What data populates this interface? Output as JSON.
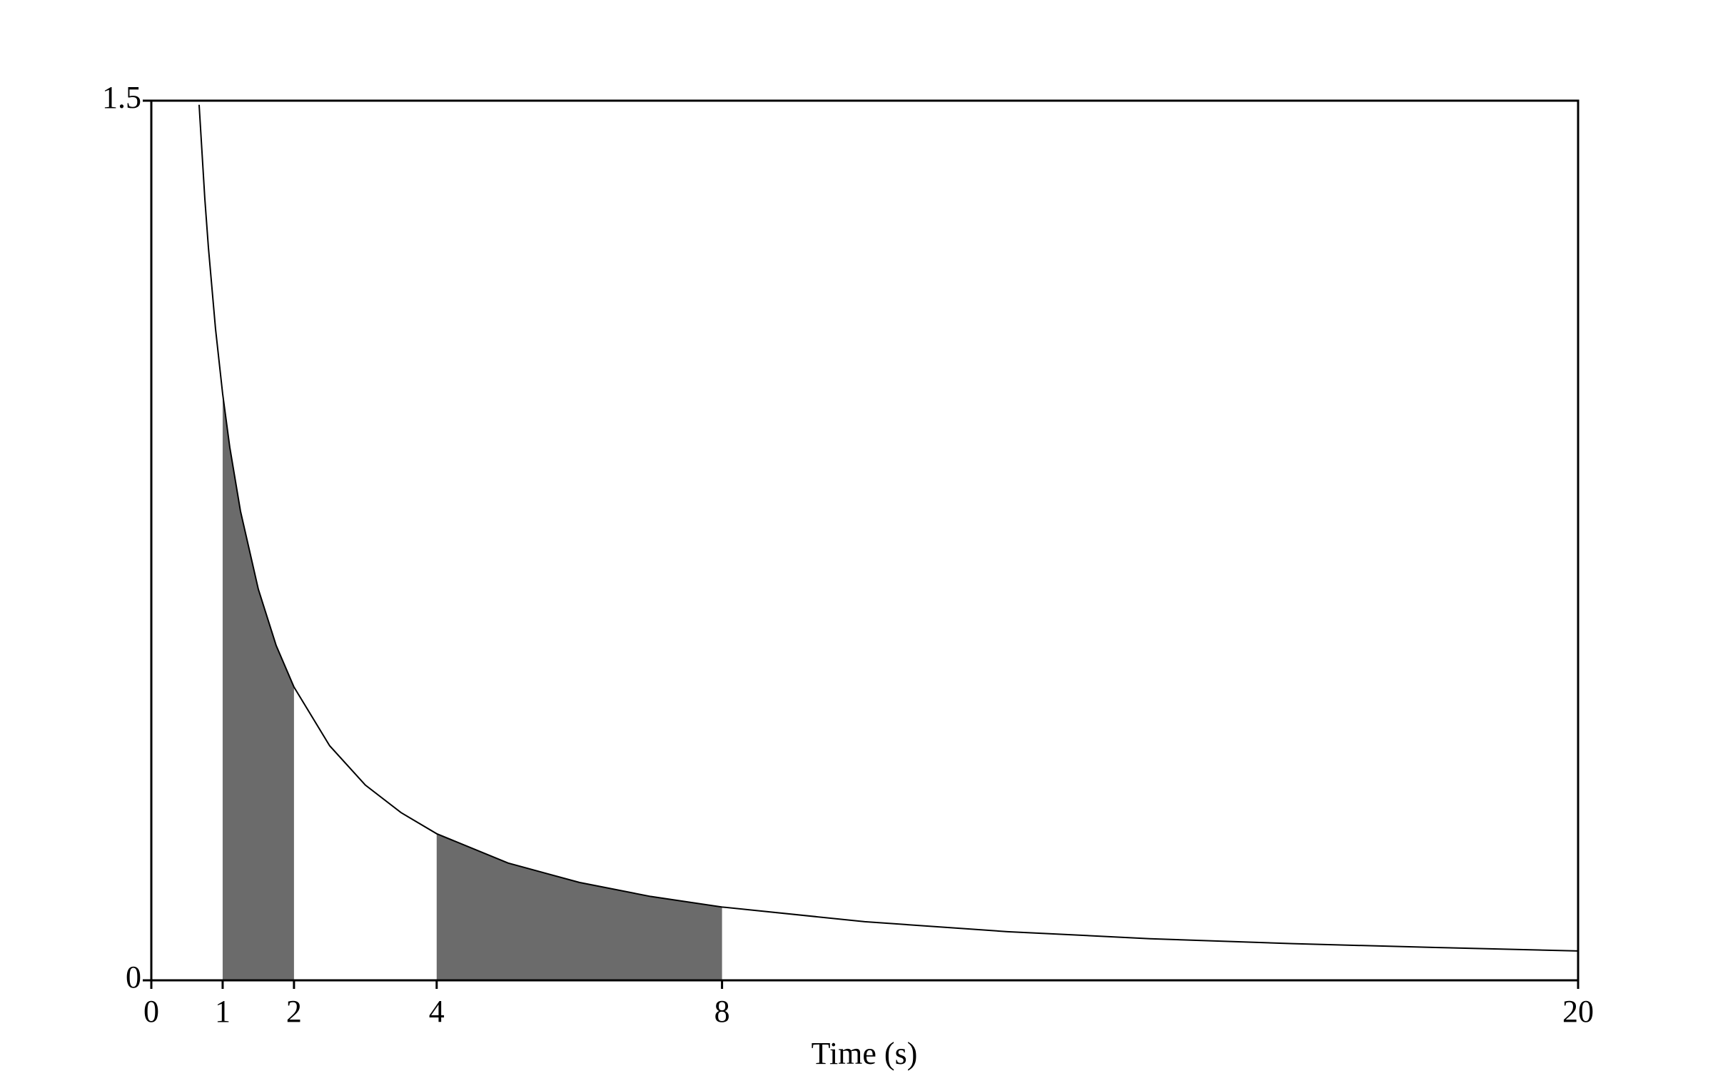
{
  "chart_data": {
    "type": "line",
    "x_label": "Time (s)",
    "x": [
      0.67,
      0.75,
      0.8,
      0.9,
      1,
      1.1,
      1.25,
      1.5,
      1.75,
      2,
      2.5,
      3,
      3.5,
      4,
      5,
      6,
      7,
      8,
      10,
      12,
      14,
      16,
      18,
      20
    ],
    "series": [
      {
        "color": "#000000",
        "values": [
          1.493,
          1.333,
          1.25,
          1.111,
          1,
          0.909,
          0.8,
          0.667,
          0.571,
          0.5,
          0.4,
          0.333,
          0.286,
          0.25,
          0.2,
          0.167,
          0.143,
          0.125,
          0.1,
          0.083,
          0.071,
          0.0625,
          0.056,
          0.05
        ]
      }
    ],
    "shaded": [
      [
        1,
        2
      ],
      [
        4,
        8
      ]
    ],
    "shade_color": "#6b6b6b",
    "xlim": [
      0,
      20
    ],
    "ylim": [
      0,
      1.5
    ],
    "xticks": [
      0,
      1,
      2,
      4,
      8,
      20
    ],
    "yticks": [
      0,
      1.5
    ]
  }
}
